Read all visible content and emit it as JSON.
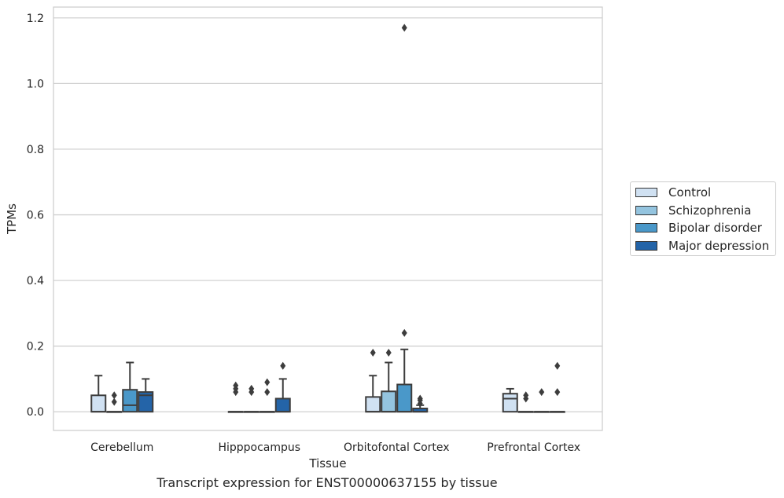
{
  "chart_data": {
    "type": "box",
    "title": "",
    "caption": "Transcript expression for ENST00000637155 by tissue",
    "xlabel": "Tissue",
    "ylabel": "TPMs",
    "ylim": [
      -0.057,
      1.233
    ],
    "yticks": [
      "0.0",
      "0.2",
      "0.4",
      "0.6",
      "0.8",
      "1.0",
      "1.2"
    ],
    "ytick_values": [
      0.0,
      0.2,
      0.4,
      0.6,
      0.8,
      1.0,
      1.2
    ],
    "grid": "horizontal",
    "legend_position": "right",
    "categories": [
      "Cerebellum",
      "Hipppocampus",
      "Orbitofontal Cortex",
      "Prefrontal Cortex"
    ],
    "series": [
      {
        "name": "Control",
        "color": "#d0e1f2",
        "boxes": [
          {
            "q1": 0.0,
            "median": 0.0,
            "q3": 0.05,
            "whislo": 0.0,
            "whishi": 0.11,
            "fliers": []
          },
          {
            "q1": 0.0,
            "median": 0.0,
            "q3": 0.0,
            "whislo": 0.0,
            "whishi": 0.0,
            "fliers": [
              0.06,
              0.07,
              0.08
            ]
          },
          {
            "q1": 0.0,
            "median": 0.0,
            "q3": 0.045,
            "whislo": 0.0,
            "whishi": 0.11,
            "fliers": [
              0.18
            ]
          },
          {
            "q1": 0.0,
            "median": 0.04,
            "q3": 0.055,
            "whislo": 0.0,
            "whishi": 0.07,
            "fliers": []
          }
        ]
      },
      {
        "name": "Schizophrenia",
        "color": "#94c4df",
        "boxes": [
          {
            "q1": 0.0,
            "median": 0.0,
            "q3": 0.0,
            "whislo": 0.0,
            "whishi": 0.0,
            "fliers": [
              0.03,
              0.05
            ]
          },
          {
            "q1": 0.0,
            "median": 0.0,
            "q3": 0.0,
            "whislo": 0.0,
            "whishi": 0.0,
            "fliers": [
              0.06,
              0.07
            ]
          },
          {
            "q1": 0.0,
            "median": 0.0,
            "q3": 0.062,
            "whislo": 0.0,
            "whishi": 0.15,
            "fliers": [
              0.18
            ]
          },
          {
            "q1": 0.0,
            "median": 0.0,
            "q3": 0.0,
            "whislo": 0.0,
            "whishi": 0.0,
            "fliers": [
              0.04,
              0.05
            ]
          }
        ]
      },
      {
        "name": "Bipolar disorder",
        "color": "#4a98c9",
        "boxes": [
          {
            "q1": 0.0,
            "median": 0.02,
            "q3": 0.067,
            "whislo": 0.0,
            "whishi": 0.15,
            "fliers": []
          },
          {
            "q1": 0.0,
            "median": 0.0,
            "q3": 0.0,
            "whislo": 0.0,
            "whishi": 0.0,
            "fliers": [
              0.06,
              0.09
            ]
          },
          {
            "q1": 0.0,
            "median": 0.0,
            "q3": 0.083,
            "whislo": 0.0,
            "whishi": 0.19,
            "fliers": [
              0.24,
              1.17
            ]
          },
          {
            "q1": 0.0,
            "median": 0.0,
            "q3": 0.0,
            "whislo": 0.0,
            "whishi": 0.0,
            "fliers": [
              0.06
            ]
          }
        ]
      },
      {
        "name": "Major depression",
        "color": "#2464a8",
        "boxes": [
          {
            "q1": 0.0,
            "median": 0.05,
            "q3": 0.06,
            "whislo": 0.0,
            "whishi": 0.1,
            "fliers": []
          },
          {
            "q1": 0.0,
            "median": 0.0,
            "q3": 0.04,
            "whislo": 0.0,
            "whishi": 0.1,
            "fliers": [
              0.14
            ]
          },
          {
            "q1": 0.0,
            "median": 0.0,
            "q3": 0.01,
            "whislo": 0.0,
            "whishi": 0.02,
            "fliers": [
              0.025,
              0.035,
              0.04
            ]
          },
          {
            "q1": 0.0,
            "median": 0.0,
            "q3": 0.0,
            "whislo": 0.0,
            "whishi": 0.0,
            "fliers": [
              0.06,
              0.14
            ]
          }
        ]
      }
    ]
  }
}
